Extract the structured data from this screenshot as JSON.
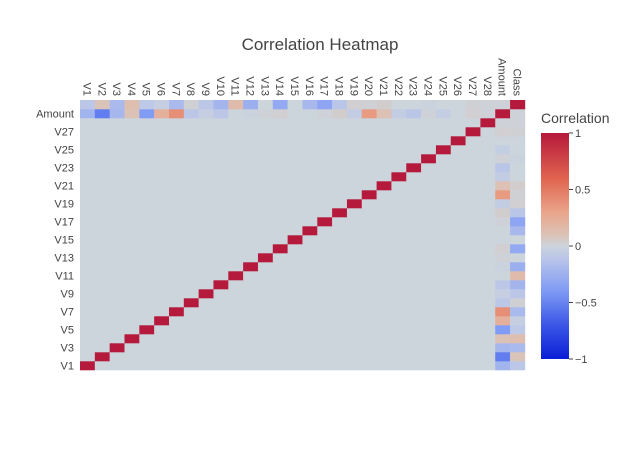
{
  "chart_data": {
    "type": "heatmap",
    "title": "Correlation Heatmap",
    "labels": [
      "V1",
      "V2",
      "V3",
      "V4",
      "V5",
      "V6",
      "V7",
      "V8",
      "V9",
      "V10",
      "V11",
      "V12",
      "V13",
      "V14",
      "V15",
      "V16",
      "V17",
      "V18",
      "V19",
      "V20",
      "V21",
      "V22",
      "V23",
      "V24",
      "V25",
      "V26",
      "V27",
      "V28",
      "Amount",
      "Class"
    ],
    "x_tick_labels": [
      "V1",
      "V2",
      "V3",
      "V4",
      "V5",
      "V6",
      "V7",
      "V8",
      "V9",
      "V10",
      "V11",
      "V12",
      "V13",
      "V14",
      "V15",
      "V16",
      "V17",
      "V18",
      "V19",
      "V20",
      "V21",
      "V22",
      "V23",
      "V24",
      "V25",
      "V26",
      "V27",
      "V28",
      "Amount",
      "Class"
    ],
    "y_tick_labels": [
      "V1",
      "V3",
      "V5",
      "V7",
      "V9",
      "V11",
      "V13",
      "V15",
      "V17",
      "V19",
      "V21",
      "V23",
      "V25",
      "V27",
      "Amount"
    ],
    "amount_correlations": [
      -0.23,
      -0.53,
      -0.21,
      0.1,
      -0.39,
      0.22,
      0.4,
      -0.1,
      -0.04,
      -0.1,
      0.0,
      -0.01,
      0.01,
      0.03,
      -0.0,
      -0.0,
      0.01,
      0.04,
      -0.06,
      0.34,
      0.11,
      -0.06,
      -0.11,
      0.01,
      -0.05,
      -0.0,
      0.03,
      0.01,
      1.0,
      0.01
    ],
    "class_correlations": [
      -0.1,
      0.09,
      -0.19,
      0.13,
      -0.09,
      -0.04,
      -0.19,
      0.02,
      -0.1,
      -0.22,
      0.15,
      -0.26,
      -0.0,
      -0.3,
      -0.0,
      -0.2,
      -0.33,
      -0.11,
      0.03,
      0.02,
      0.04,
      0.0,
      -0.0,
      -0.01,
      0.0,
      0.0,
      0.02,
      0.01,
      0.01,
      1.0
    ],
    "diagonal_value": 1,
    "off_diagonal_value": 0,
    "colorscale": [
      [
        0,
        "#0a1fd6"
      ],
      [
        0.15,
        "#3a56e6"
      ],
      [
        0.3,
        "#7f9af5"
      ],
      [
        0.45,
        "#bcc7e8"
      ],
      [
        0.5,
        "#ccd4dc"
      ],
      [
        0.55,
        "#dcc2b6"
      ],
      [
        0.65,
        "#eaa48a"
      ],
      [
        0.8,
        "#e0634f"
      ],
      [
        1,
        "#b5193b"
      ]
    ],
    "zmin": -1,
    "zmax": 1,
    "colorbar": {
      "title": "Correlation",
      "tick_values": [
        1,
        0.5,
        0,
        -0.5,
        -1
      ],
      "tick_labels": [
        "1",
        "0.5",
        "0",
        "−0.5",
        "−1"
      ]
    }
  }
}
